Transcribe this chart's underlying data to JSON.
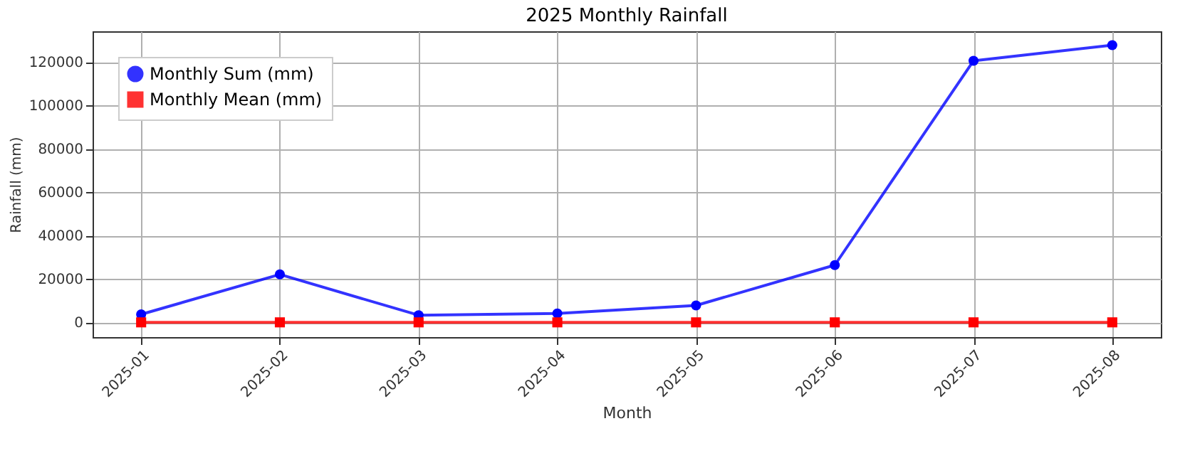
{
  "chart_data": {
    "type": "line",
    "title": "2025 Monthly Rainfall",
    "xlabel": "Month",
    "ylabel": "Rainfall (mm)",
    "categories": [
      "2025-01",
      "2025-02",
      "2025-03",
      "2025-04",
      "2025-05",
      "2025-06",
      "2025-07",
      "2025-08"
    ],
    "series": [
      {
        "name": "Monthly Sum (mm)",
        "color": "#0000ff",
        "marker": "circle",
        "values": [
          3700,
          22100,
          3300,
          4100,
          7800,
          26400,
          120600,
          127800
        ]
      },
      {
        "name": "Monthly Mean (mm)",
        "color": "#ff0000",
        "marker": "square",
        "values": [
          0,
          0,
          0,
          0,
          0,
          0,
          0,
          0
        ]
      }
    ],
    "ylim": [
      -6800,
      134200
    ],
    "yticks": [
      0,
      20000,
      40000,
      60000,
      80000,
      100000,
      120000
    ],
    "grid": true,
    "legend": "top left"
  }
}
